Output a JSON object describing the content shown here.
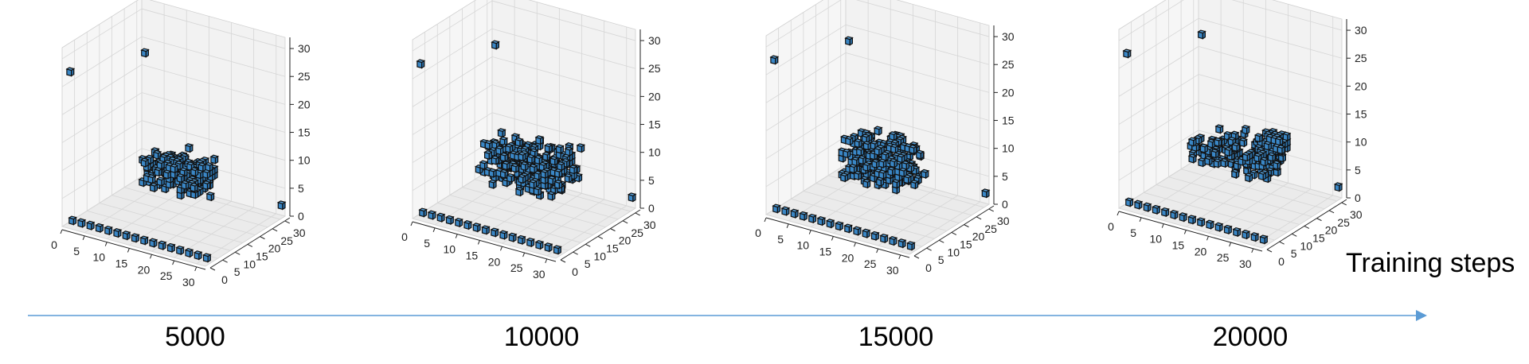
{
  "axis_title": "Training steps",
  "accent_color": "#5b9bd5",
  "voxel_face_color": "#3a87c6",
  "step_labels": [
    "5000",
    "10000",
    "15000",
    "20000"
  ],
  "chart_data": [
    {
      "type": "voxel-3d",
      "step": "5000",
      "xticks": [
        "0",
        "5",
        "10",
        "15",
        "20",
        "25",
        "30"
      ],
      "yticks": [
        "0",
        "5",
        "10",
        "15",
        "20",
        "25",
        "30"
      ],
      "zticks": [
        "0",
        "5",
        "10",
        "15",
        "20",
        "25",
        "30"
      ],
      "xlim": [
        0,
        32
      ],
      "ylim": [
        0,
        32
      ],
      "zlim": [
        0,
        32
      ],
      "grid": true
    },
    {
      "type": "voxel-3d",
      "step": "10000",
      "xticks": [
        "0",
        "5",
        "10",
        "15",
        "20",
        "25",
        "30"
      ],
      "yticks": [
        "0",
        "5",
        "10",
        "15",
        "20",
        "25",
        "30"
      ],
      "zticks": [
        "0",
        "5",
        "10",
        "15",
        "20",
        "25",
        "30"
      ],
      "xlim": [
        0,
        32
      ],
      "ylim": [
        0,
        32
      ],
      "zlim": [
        0,
        32
      ],
      "grid": true
    },
    {
      "type": "voxel-3d",
      "step": "15000",
      "xticks": [
        "0",
        "5",
        "10",
        "15",
        "20",
        "25",
        "30"
      ],
      "yticks": [
        "0",
        "5",
        "10",
        "15",
        "20",
        "25",
        "30"
      ],
      "zticks": [
        "0",
        "5",
        "10",
        "15",
        "20",
        "25",
        "30"
      ],
      "xlim": [
        0,
        32
      ],
      "ylim": [
        0,
        32
      ],
      "zlim": [
        0,
        32
      ],
      "grid": true
    },
    {
      "type": "voxel-3d",
      "step": "20000",
      "xticks": [
        "0",
        "5",
        "10",
        "15",
        "20",
        "25",
        "30"
      ],
      "yticks": [
        "0",
        "5",
        "10",
        "15",
        "20",
        "25",
        "30"
      ],
      "zticks": [
        "0",
        "5",
        "10",
        "15",
        "20",
        "25",
        "30"
      ],
      "xlim": [
        0,
        32
      ],
      "ylim": [
        0,
        32
      ],
      "zlim": [
        0,
        32
      ],
      "grid": true
    }
  ]
}
